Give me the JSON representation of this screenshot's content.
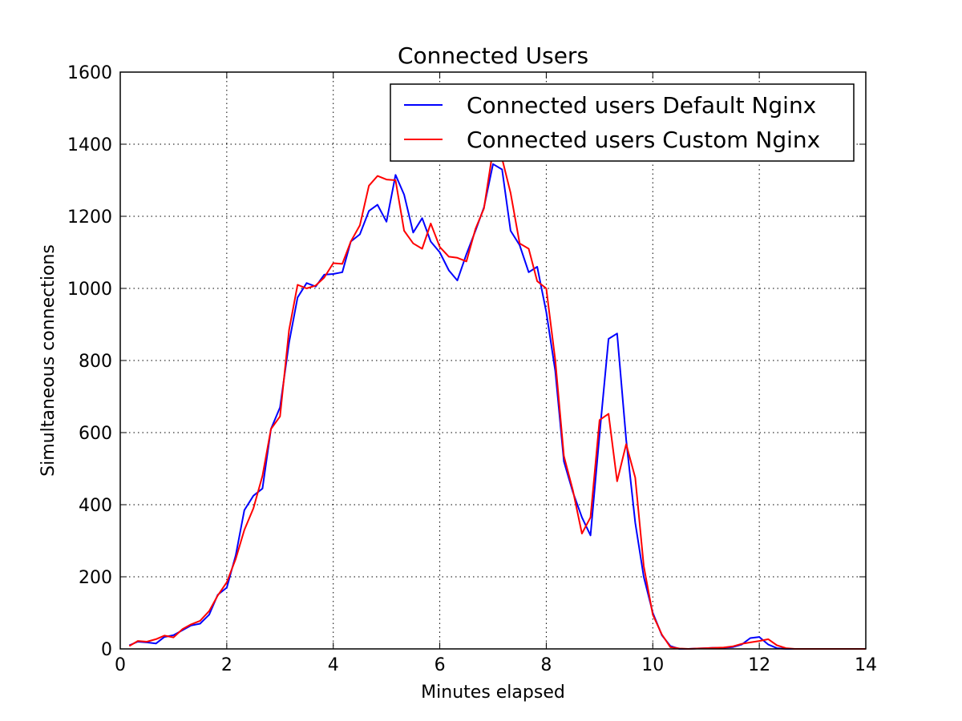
{
  "chart_data": {
    "type": "line",
    "title": "Connected Users",
    "xlabel": "Minutes elapsed",
    "ylabel": "Simultaneous connections",
    "xlim": [
      0,
      14
    ],
    "ylim": [
      0,
      1600
    ],
    "xticks": [
      0,
      2,
      4,
      6,
      8,
      10,
      12,
      14
    ],
    "yticks": [
      0,
      200,
      400,
      600,
      800,
      1000,
      1200,
      1400,
      1600
    ],
    "grid": true,
    "legend": {
      "position": "top-right"
    },
    "series": [
      {
        "name": "Connected users Default Nginx",
        "color": "#0000ff",
        "points": [
          [
            0.17,
            10
          ],
          [
            0.33,
            20
          ],
          [
            0.5,
            18
          ],
          [
            0.67,
            15
          ],
          [
            0.83,
            33
          ],
          [
            1.0,
            38
          ],
          [
            1.17,
            52
          ],
          [
            1.33,
            65
          ],
          [
            1.5,
            70
          ],
          [
            1.67,
            95
          ],
          [
            1.83,
            150
          ],
          [
            2.0,
            170
          ],
          [
            2.17,
            260
          ],
          [
            2.33,
            385
          ],
          [
            2.5,
            425
          ],
          [
            2.67,
            445
          ],
          [
            2.83,
            610
          ],
          [
            3.0,
            670
          ],
          [
            3.17,
            850
          ],
          [
            3.33,
            975
          ],
          [
            3.5,
            1015
          ],
          [
            3.67,
            1005
          ],
          [
            3.83,
            1038
          ],
          [
            4.0,
            1040
          ],
          [
            4.17,
            1045
          ],
          [
            4.33,
            1130
          ],
          [
            4.5,
            1150
          ],
          [
            4.67,
            1215
          ],
          [
            4.83,
            1232
          ],
          [
            5.0,
            1185
          ],
          [
            5.17,
            1315
          ],
          [
            5.33,
            1260
          ],
          [
            5.5,
            1155
          ],
          [
            5.67,
            1195
          ],
          [
            5.83,
            1130
          ],
          [
            6.0,
            1100
          ],
          [
            6.17,
            1050
          ],
          [
            6.33,
            1022
          ],
          [
            6.5,
            1095
          ],
          [
            6.67,
            1160
          ],
          [
            6.83,
            1225
          ],
          [
            7.0,
            1345
          ],
          [
            7.17,
            1330
          ],
          [
            7.33,
            1160
          ],
          [
            7.5,
            1120
          ],
          [
            7.67,
            1045
          ],
          [
            7.83,
            1060
          ],
          [
            8.0,
            935
          ],
          [
            8.17,
            770
          ],
          [
            8.33,
            520
          ],
          [
            8.5,
            435
          ],
          [
            8.67,
            365
          ],
          [
            8.83,
            315
          ],
          [
            9.0,
            595
          ],
          [
            9.17,
            860
          ],
          [
            9.33,
            875
          ],
          [
            9.5,
            580
          ],
          [
            9.67,
            350
          ],
          [
            9.83,
            200
          ],
          [
            10.0,
            100
          ],
          [
            10.17,
            38
          ],
          [
            10.33,
            8
          ],
          [
            10.5,
            0
          ],
          [
            10.67,
            0
          ],
          [
            10.83,
            1
          ],
          [
            11.0,
            2
          ],
          [
            11.17,
            3
          ],
          [
            11.33,
            3
          ],
          [
            11.5,
            5
          ],
          [
            11.67,
            12
          ],
          [
            11.83,
            30
          ],
          [
            12.0,
            33
          ],
          [
            12.17,
            12
          ],
          [
            12.33,
            2
          ],
          [
            12.5,
            0
          ],
          [
            12.67,
            0
          ],
          [
            12.83,
            0
          ],
          [
            13.0,
            0
          ],
          [
            13.17,
            0
          ],
          [
            13.33,
            0
          ],
          [
            13.5,
            0
          ],
          [
            13.67,
            0
          ],
          [
            13.83,
            0
          ],
          [
            14.0,
            0
          ]
        ]
      },
      {
        "name": "Connected users Custom Nginx",
        "color": "#ff0000",
        "points": [
          [
            0.17,
            8
          ],
          [
            0.33,
            22
          ],
          [
            0.5,
            20
          ],
          [
            0.67,
            27
          ],
          [
            0.83,
            37
          ],
          [
            1.0,
            32
          ],
          [
            1.17,
            55
          ],
          [
            1.33,
            68
          ],
          [
            1.5,
            78
          ],
          [
            1.67,
            105
          ],
          [
            1.83,
            148
          ],
          [
            2.0,
            185
          ],
          [
            2.17,
            250
          ],
          [
            2.33,
            330
          ],
          [
            2.5,
            390
          ],
          [
            2.67,
            480
          ],
          [
            2.83,
            610
          ],
          [
            3.0,
            645
          ],
          [
            3.17,
            885
          ],
          [
            3.33,
            1010
          ],
          [
            3.5,
            1000
          ],
          [
            3.67,
            1008
          ],
          [
            3.83,
            1030
          ],
          [
            4.0,
            1070
          ],
          [
            4.17,
            1068
          ],
          [
            4.33,
            1130
          ],
          [
            4.5,
            1175
          ],
          [
            4.67,
            1285
          ],
          [
            4.83,
            1312
          ],
          [
            5.0,
            1302
          ],
          [
            5.17,
            1300
          ],
          [
            5.33,
            1160
          ],
          [
            5.5,
            1125
          ],
          [
            5.67,
            1110
          ],
          [
            5.83,
            1180
          ],
          [
            6.0,
            1115
          ],
          [
            6.17,
            1088
          ],
          [
            6.33,
            1085
          ],
          [
            6.5,
            1075
          ],
          [
            6.67,
            1165
          ],
          [
            6.83,
            1222
          ],
          [
            7.0,
            1385
          ],
          [
            7.17,
            1360
          ],
          [
            7.33,
            1265
          ],
          [
            7.5,
            1125
          ],
          [
            7.67,
            1110
          ],
          [
            7.83,
            1020
          ],
          [
            8.0,
            1000
          ],
          [
            8.17,
            800
          ],
          [
            8.33,
            535
          ],
          [
            8.5,
            440
          ],
          [
            8.67,
            320
          ],
          [
            8.83,
            365
          ],
          [
            9.0,
            635
          ],
          [
            9.17,
            652
          ],
          [
            9.33,
            465
          ],
          [
            9.5,
            568
          ],
          [
            9.67,
            475
          ],
          [
            9.83,
            230
          ],
          [
            10.0,
            95
          ],
          [
            10.17,
            40
          ],
          [
            10.33,
            5
          ],
          [
            10.5,
            1
          ],
          [
            10.67,
            0
          ],
          [
            10.83,
            1
          ],
          [
            11.0,
            2
          ],
          [
            11.17,
            3
          ],
          [
            11.33,
            4
          ],
          [
            11.5,
            7
          ],
          [
            11.67,
            14
          ],
          [
            11.83,
            18
          ],
          [
            12.0,
            22
          ],
          [
            12.17,
            27
          ],
          [
            12.33,
            10
          ],
          [
            12.5,
            2
          ],
          [
            12.67,
            0
          ],
          [
            12.83,
            0
          ],
          [
            13.0,
            0
          ],
          [
            13.17,
            0
          ],
          [
            13.33,
            0
          ],
          [
            13.5,
            0
          ],
          [
            13.67,
            0
          ],
          [
            13.83,
            0
          ],
          [
            14.0,
            0
          ]
        ]
      }
    ]
  }
}
